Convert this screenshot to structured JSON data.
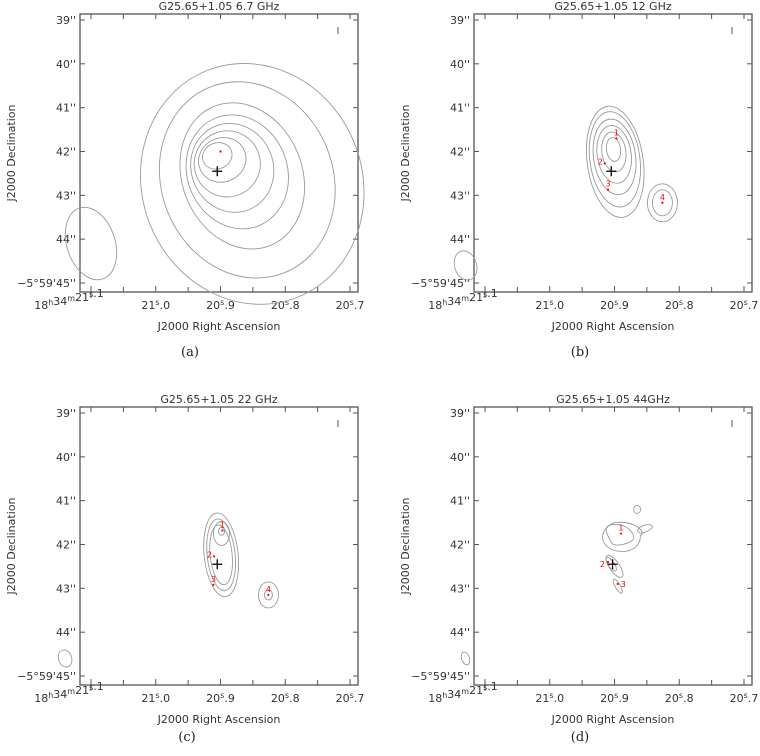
{
  "figure": {
    "common": {
      "xlabel": "J2000 Right Ascension",
      "ylabel": "J2000 Declination",
      "y_ticks": [
        {
          "label": "39''",
          "value": 39
        },
        {
          "label": "40''",
          "value": 40
        },
        {
          "label": "41''",
          "value": 41
        },
        {
          "label": "42''",
          "value": 42
        },
        {
          "label": "43''",
          "value": 43
        },
        {
          "label": "44''",
          "value": 44
        },
        {
          "label": "−5°59'45''",
          "value": 45
        }
      ],
      "x_ticks": [
        {
          "label": "18h34m21s.1",
          "value": 21.1
        },
        {
          "label": "21s.0",
          "value": 21.0
        },
        {
          "label": "20s.9",
          "value": 20.9
        },
        {
          "label": "20s.8",
          "value": 20.8
        },
        {
          "label": "20s.7",
          "value": 20.7
        }
      ],
      "contour_color": "#9a9a9a",
      "source_color": "#ff0000",
      "cross_color": "#000000"
    },
    "panels": [
      {
        "id": "a",
        "title": "G25.65+1.05  6.7 GHz",
        "caption": "(a)"
      },
      {
        "id": "b",
        "title": "G25.65+1.05  12 GHz",
        "caption": "(b)"
      },
      {
        "id": "c",
        "title": "G25.65+1.05  22 GHz",
        "caption": "(c)"
      },
      {
        "id": "d",
        "title": "G25.65+1.05  44GHz",
        "caption": "(d)"
      }
    ]
  },
  "chart_data": [
    {
      "type": "contour",
      "title": "G25.65+1.05  6.7 GHz",
      "xlabel": "J2000 Right Ascension",
      "ylabel": "J2000 Declination",
      "x_ticks": [
        "18h34m21s.1",
        "21s.0",
        "20s.9",
        "20s.8",
        "20s.7"
      ],
      "y_ticks": [
        "39''",
        "40''",
        "41''",
        "42''",
        "43''",
        "44''",
        "-5°59'45''"
      ],
      "xlim": [
        21.12,
        20.69
      ],
      "ylim": [
        45.1,
        38.95
      ],
      "n_contours": 8,
      "peak": {
        "ra_s": 20.9,
        "dec_arcsec": 42.0
      },
      "cross": {
        "ra_s": 20.905,
        "dec_arcsec": 42.45
      },
      "beam": {
        "ra_s": 21.1,
        "dec_arcsec": 44.1,
        "major_arcsec": 1.7,
        "minor_arcsec": 1.1
      },
      "sources": [
        {
          "label": "",
          "ra_s": 20.9,
          "dec_arcsec": 42.0
        }
      ]
    },
    {
      "type": "contour",
      "title": "G25.65+1.05  12 GHz",
      "xlabel": "J2000 Right Ascension",
      "ylabel": "J2000 Declination",
      "xlim": [
        21.12,
        20.69
      ],
      "ylim": [
        45.1,
        38.95
      ],
      "n_contours": 6,
      "cross": {
        "ra_s": 20.905,
        "dec_arcsec": 42.45
      },
      "beam": {
        "ra_s": 21.13,
        "dec_arcsec": 44.6,
        "major_arcsec": 0.68,
        "minor_arcsec": 0.5
      },
      "sources": [
        {
          "label": "1",
          "ra_s": 20.897,
          "dec_arcsec": 41.7
        },
        {
          "label": "2",
          "ra_s": 20.915,
          "dec_arcsec": 42.27
        },
        {
          "label": "3",
          "ra_s": 20.91,
          "dec_arcsec": 42.87
        },
        {
          "label": "4",
          "ra_s": 20.826,
          "dec_arcsec": 43.17
        }
      ]
    },
    {
      "type": "contour",
      "title": "G25.65+1.05  22 GHz",
      "xlabel": "J2000 Right Ascension",
      "ylabel": "J2000 Declination",
      "xlim": [
        21.12,
        20.69
      ],
      "ylim": [
        45.1,
        38.95
      ],
      "n_contours": 5,
      "cross": {
        "ra_s": 20.905,
        "dec_arcsec": 42.45
      },
      "beam": {
        "ra_s": 21.14,
        "dec_arcsec": 44.6,
        "major_arcsec": 0.4,
        "minor_arcsec": 0.3
      },
      "sources": [
        {
          "label": "1",
          "ra_s": 20.897,
          "dec_arcsec": 41.68
        },
        {
          "label": "2",
          "ra_s": 20.91,
          "dec_arcsec": 42.27
        },
        {
          "label": "3",
          "ra_s": 20.911,
          "dec_arcsec": 42.92
        },
        {
          "label": "4",
          "ra_s": 20.826,
          "dec_arcsec": 43.15
        }
      ]
    },
    {
      "type": "contour",
      "title": "G25.65+1.05  44GHz",
      "xlabel": "J2000 Right Ascension",
      "ylabel": "J2000 Declination",
      "xlim": [
        21.12,
        20.69
      ],
      "ylim": [
        45.1,
        38.95
      ],
      "n_contours": 3,
      "cross": {
        "ra_s": 20.903,
        "dec_arcsec": 42.45
      },
      "beam": {
        "ra_s": 21.13,
        "dec_arcsec": 44.6,
        "major_arcsec": 0.3,
        "minor_arcsec": 0.18
      },
      "sources": [
        {
          "label": "1",
          "ra_s": 20.89,
          "dec_arcsec": 41.75
        },
        {
          "label": "2",
          "ra_s": 20.91,
          "dec_arcsec": 42.4
        },
        {
          "label": "3",
          "ra_s": 20.895,
          "dec_arcsec": 42.9
        }
      ]
    }
  ]
}
